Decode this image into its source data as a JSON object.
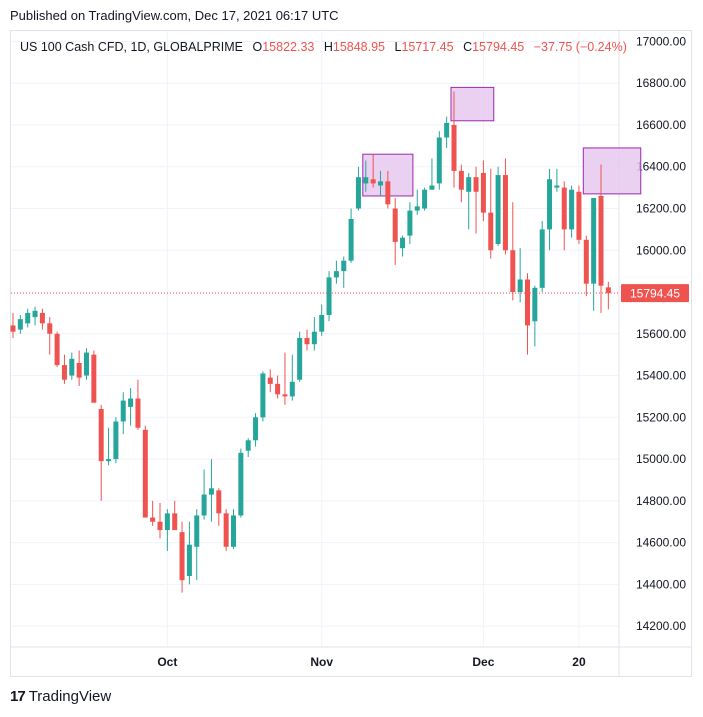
{
  "header": {
    "published": "Published on TradingView.com, Dec 17, 2021 06:17 UTC"
  },
  "legend": {
    "symbol": "US 100 Cash CFD, 1D, GLOBALPRIME",
    "open_label": "O",
    "open": "15822.33",
    "high_label": "H",
    "high": "15848.95",
    "low_label": "L",
    "low": "15717.45",
    "close_label": "C",
    "close": "15794.45",
    "change": "−37.75 (−0.24%)"
  },
  "footer": {
    "logo_mark": "17",
    "logo_text": "TradingView"
  },
  "colors": {
    "up": "#26a69a",
    "down": "#ef5350",
    "box_fill": "#e6c8ee",
    "box_stroke": "#9c27b0",
    "grid": "#f0f3fa",
    "price_line": "#ef5350"
  },
  "chart_data": {
    "type": "candlestick",
    "ylim": [
      14100,
      17050
    ],
    "y_ticks": [
      "17000.00",
      "16800.00",
      "16600.00",
      "16400.00",
      "16200.00",
      "16000.00",
      "15800.00",
      "15600.00",
      "15400.00",
      "15200.00",
      "15000.00",
      "14800.00",
      "14600.00",
      "14400.00",
      "14200.00"
    ],
    "y_tick_values": [
      17000,
      16800,
      16600,
      16400,
      16200,
      16000,
      15800,
      15600,
      15400,
      15200,
      15000,
      14800,
      14600,
      14400,
      14200
    ],
    "x_labels": [
      {
        "label": "Oct",
        "index": 21
      },
      {
        "label": "Nov",
        "index": 42
      },
      {
        "label": "Dec",
        "index": 64
      },
      {
        "label": "20",
        "index": 77
      }
    ],
    "last_price": "15794.45",
    "last_price_value": 15794.45,
    "candles": [
      {
        "o": 15640,
        "h": 15700,
        "l": 15580,
        "c": 15610
      },
      {
        "o": 15620,
        "h": 15690,
        "l": 15600,
        "c": 15670
      },
      {
        "o": 15650,
        "h": 15720,
        "l": 15630,
        "c": 15700
      },
      {
        "o": 15680,
        "h": 15730,
        "l": 15640,
        "c": 15710
      },
      {
        "o": 15700,
        "h": 15720,
        "l": 15620,
        "c": 15650
      },
      {
        "o": 15650,
        "h": 15680,
        "l": 15500,
        "c": 15600
      },
      {
        "o": 15600,
        "h": 15610,
        "l": 15440,
        "c": 15450
      },
      {
        "o": 15450,
        "h": 15500,
        "l": 15360,
        "c": 15380
      },
      {
        "o": 15400,
        "h": 15510,
        "l": 15380,
        "c": 15480
      },
      {
        "o": 15460,
        "h": 15520,
        "l": 15350,
        "c": 15390
      },
      {
        "o": 15400,
        "h": 15530,
        "l": 15380,
        "c": 15510
      },
      {
        "o": 15500,
        "h": 15520,
        "l": 15270,
        "c": 15270
      },
      {
        "o": 15240,
        "h": 15260,
        "l": 14800,
        "c": 14990
      },
      {
        "o": 14990,
        "h": 15150,
        "l": 14970,
        "c": 15000
      },
      {
        "o": 15000,
        "h": 15200,
        "l": 14980,
        "c": 15180
      },
      {
        "o": 15180,
        "h": 15320,
        "l": 15120,
        "c": 15280
      },
      {
        "o": 15250,
        "h": 15340,
        "l": 15160,
        "c": 15290
      },
      {
        "o": 15290,
        "h": 15380,
        "l": 15140,
        "c": 15150
      },
      {
        "o": 15140,
        "h": 15160,
        "l": 14720,
        "c": 14720
      },
      {
        "o": 14720,
        "h": 14800,
        "l": 14680,
        "c": 14700
      },
      {
        "o": 14700,
        "h": 14790,
        "l": 14620,
        "c": 14660
      },
      {
        "o": 14660,
        "h": 14760,
        "l": 14560,
        "c": 14740
      },
      {
        "o": 14740,
        "h": 14800,
        "l": 14660,
        "c": 14660
      },
      {
        "o": 14650,
        "h": 14700,
        "l": 14360,
        "c": 14420
      },
      {
        "o": 14440,
        "h": 14700,
        "l": 14400,
        "c": 14590
      },
      {
        "o": 14580,
        "h": 14760,
        "l": 14420,
        "c": 14730
      },
      {
        "o": 14730,
        "h": 14950,
        "l": 14710,
        "c": 14830
      },
      {
        "o": 14830,
        "h": 15000,
        "l": 14700,
        "c": 14860
      },
      {
        "o": 14850,
        "h": 14860,
        "l": 14680,
        "c": 14740
      },
      {
        "o": 14740,
        "h": 14760,
        "l": 14560,
        "c": 14580
      },
      {
        "o": 14580,
        "h": 14760,
        "l": 14570,
        "c": 14730
      },
      {
        "o": 14730,
        "h": 15050,
        "l": 14720,
        "c": 15030
      },
      {
        "o": 15040,
        "h": 15100,
        "l": 15010,
        "c": 15090
      },
      {
        "o": 15090,
        "h": 15220,
        "l": 15060,
        "c": 15200
      },
      {
        "o": 15200,
        "h": 15420,
        "l": 15180,
        "c": 15410
      },
      {
        "o": 15390,
        "h": 15430,
        "l": 15320,
        "c": 15360
      },
      {
        "o": 15360,
        "h": 15400,
        "l": 15290,
        "c": 15310
      },
      {
        "o": 15310,
        "h": 15510,
        "l": 15260,
        "c": 15300
      },
      {
        "o": 15300,
        "h": 15500,
        "l": 15280,
        "c": 15370
      },
      {
        "o": 15380,
        "h": 15610,
        "l": 15370,
        "c": 15580
      },
      {
        "o": 15580,
        "h": 15620,
        "l": 15520,
        "c": 15550
      },
      {
        "o": 15550,
        "h": 15680,
        "l": 15520,
        "c": 15610
      },
      {
        "o": 15610,
        "h": 15740,
        "l": 15590,
        "c": 15690
      },
      {
        "o": 15690,
        "h": 15900,
        "l": 15660,
        "c": 15870
      },
      {
        "o": 15870,
        "h": 15950,
        "l": 15840,
        "c": 15900
      },
      {
        "o": 15900,
        "h": 15970,
        "l": 15820,
        "c": 15950
      },
      {
        "o": 15950,
        "h": 16200,
        "l": 15940,
        "c": 16150
      },
      {
        "o": 16200,
        "h": 16400,
        "l": 16190,
        "c": 16350
      },
      {
        "o": 16320,
        "h": 16430,
        "l": 16280,
        "c": 16350
      },
      {
        "o": 16340,
        "h": 16460,
        "l": 16300,
        "c": 16320
      },
      {
        "o": 16310,
        "h": 16380,
        "l": 16260,
        "c": 16330
      },
      {
        "o": 16330,
        "h": 16380,
        "l": 16200,
        "c": 16220
      },
      {
        "o": 16200,
        "h": 16250,
        "l": 15930,
        "c": 16040
      },
      {
        "o": 16010,
        "h": 16070,
        "l": 15970,
        "c": 16060
      },
      {
        "o": 16070,
        "h": 16230,
        "l": 16030,
        "c": 16190
      },
      {
        "o": 16190,
        "h": 16290,
        "l": 16170,
        "c": 16210
      },
      {
        "o": 16200,
        "h": 16300,
        "l": 16190,
        "c": 16290
      },
      {
        "o": 16290,
        "h": 16440,
        "l": 16290,
        "c": 16310
      },
      {
        "o": 16320,
        "h": 16570,
        "l": 16290,
        "c": 16540
      },
      {
        "o": 16540,
        "h": 16640,
        "l": 16490,
        "c": 16610
      },
      {
        "o": 16600,
        "h": 16760,
        "l": 16300,
        "c": 16380
      },
      {
        "o": 16380,
        "h": 16410,
        "l": 16230,
        "c": 16290
      },
      {
        "o": 16280,
        "h": 16370,
        "l": 16100,
        "c": 16350
      },
      {
        "o": 16350,
        "h": 16400,
        "l": 16080,
        "c": 16280
      },
      {
        "o": 16370,
        "h": 16430,
        "l": 16140,
        "c": 16180
      },
      {
        "o": 16180,
        "h": 16390,
        "l": 15960,
        "c": 16000
      },
      {
        "o": 16030,
        "h": 16400,
        "l": 16020,
        "c": 16360
      },
      {
        "o": 16360,
        "h": 16440,
        "l": 15980,
        "c": 16000
      },
      {
        "o": 16000,
        "h": 16230,
        "l": 15760,
        "c": 15800
      },
      {
        "o": 15800,
        "h": 16010,
        "l": 15750,
        "c": 15860
      },
      {
        "o": 15860,
        "h": 15890,
        "l": 15500,
        "c": 15640
      },
      {
        "o": 15660,
        "h": 15830,
        "l": 15540,
        "c": 15820
      },
      {
        "o": 15820,
        "h": 16140,
        "l": 15800,
        "c": 16100
      },
      {
        "o": 16100,
        "h": 16390,
        "l": 16000,
        "c": 16340
      },
      {
        "o": 16300,
        "h": 16390,
        "l": 16280,
        "c": 16310
      },
      {
        "o": 16300,
        "h": 16330,
        "l": 16000,
        "c": 16100
      },
      {
        "o": 16100,
        "h": 16310,
        "l": 16060,
        "c": 16290
      },
      {
        "o": 16280,
        "h": 16310,
        "l": 16030,
        "c": 16050
      },
      {
        "o": 16050,
        "h": 16070,
        "l": 15780,
        "c": 15840
      },
      {
        "o": 15840,
        "h": 16250,
        "l": 15710,
        "c": 16250
      },
      {
        "o": 16260,
        "h": 16410,
        "l": 15700,
        "c": 15830
      },
      {
        "o": 15822.33,
        "h": 15848.95,
        "l": 15717.45,
        "c": 15794.45
      }
    ],
    "highlight_boxes": [
      {
        "x_start": 48,
        "x_end": 54,
        "y_top": 16460,
        "y_bottom": 16260
      },
      {
        "x_start": 60,
        "x_end": 65,
        "y_top": 16780,
        "y_bottom": 16620
      },
      {
        "x_start": 78,
        "x_end": 85,
        "y_top": 16490,
        "y_bottom": 16270
      }
    ]
  }
}
